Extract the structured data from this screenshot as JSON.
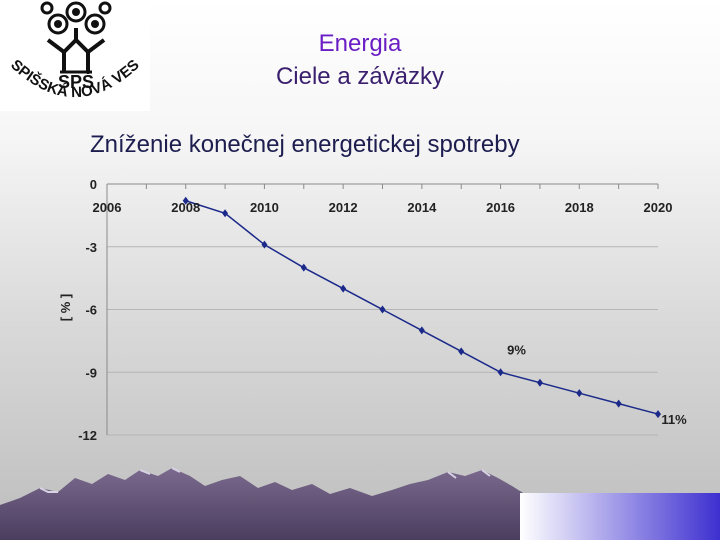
{
  "header": {
    "line1": "Energia",
    "line2": "Ciele a záväzky"
  },
  "logo": {
    "text_top": "SPŠ",
    "text_arc": "SPIŠSKÁ NOVÁ VES"
  },
  "slide_title": "Zníženie konečnej energetickej spotreby",
  "chart_data": {
    "type": "line",
    "title": "",
    "ylabel": "[ % ]",
    "xlabel": "",
    "x": [
      2008,
      2009,
      2010,
      2011,
      2012,
      2013,
      2014,
      2015,
      2016,
      2017,
      2018,
      2019,
      2020
    ],
    "series": [
      {
        "values": [
          -0.8,
          -1.4,
          -2.9,
          -4.0,
          -5.0,
          -6.0,
          -7.0,
          -8.0,
          -9.0,
          -9.5,
          -10.0,
          -10.5,
          -11.0
        ]
      }
    ],
    "xlim": [
      2006,
      2020
    ],
    "ylim": [
      -12,
      0
    ],
    "x_ticks": [
      "2006",
      "2008",
      "2010",
      "2012",
      "2014",
      "2016",
      "2018",
      "2020"
    ],
    "y_ticks": [
      "0",
      "-3",
      "-6",
      "-9",
      "-12"
    ],
    "annotations": [
      {
        "text": "9%",
        "x": 2016,
        "y": -9.0
      },
      {
        "text": "11%",
        "x": 2020,
        "y": -11.0
      }
    ],
    "grid": true,
    "line_color": "#1b2a8a"
  }
}
